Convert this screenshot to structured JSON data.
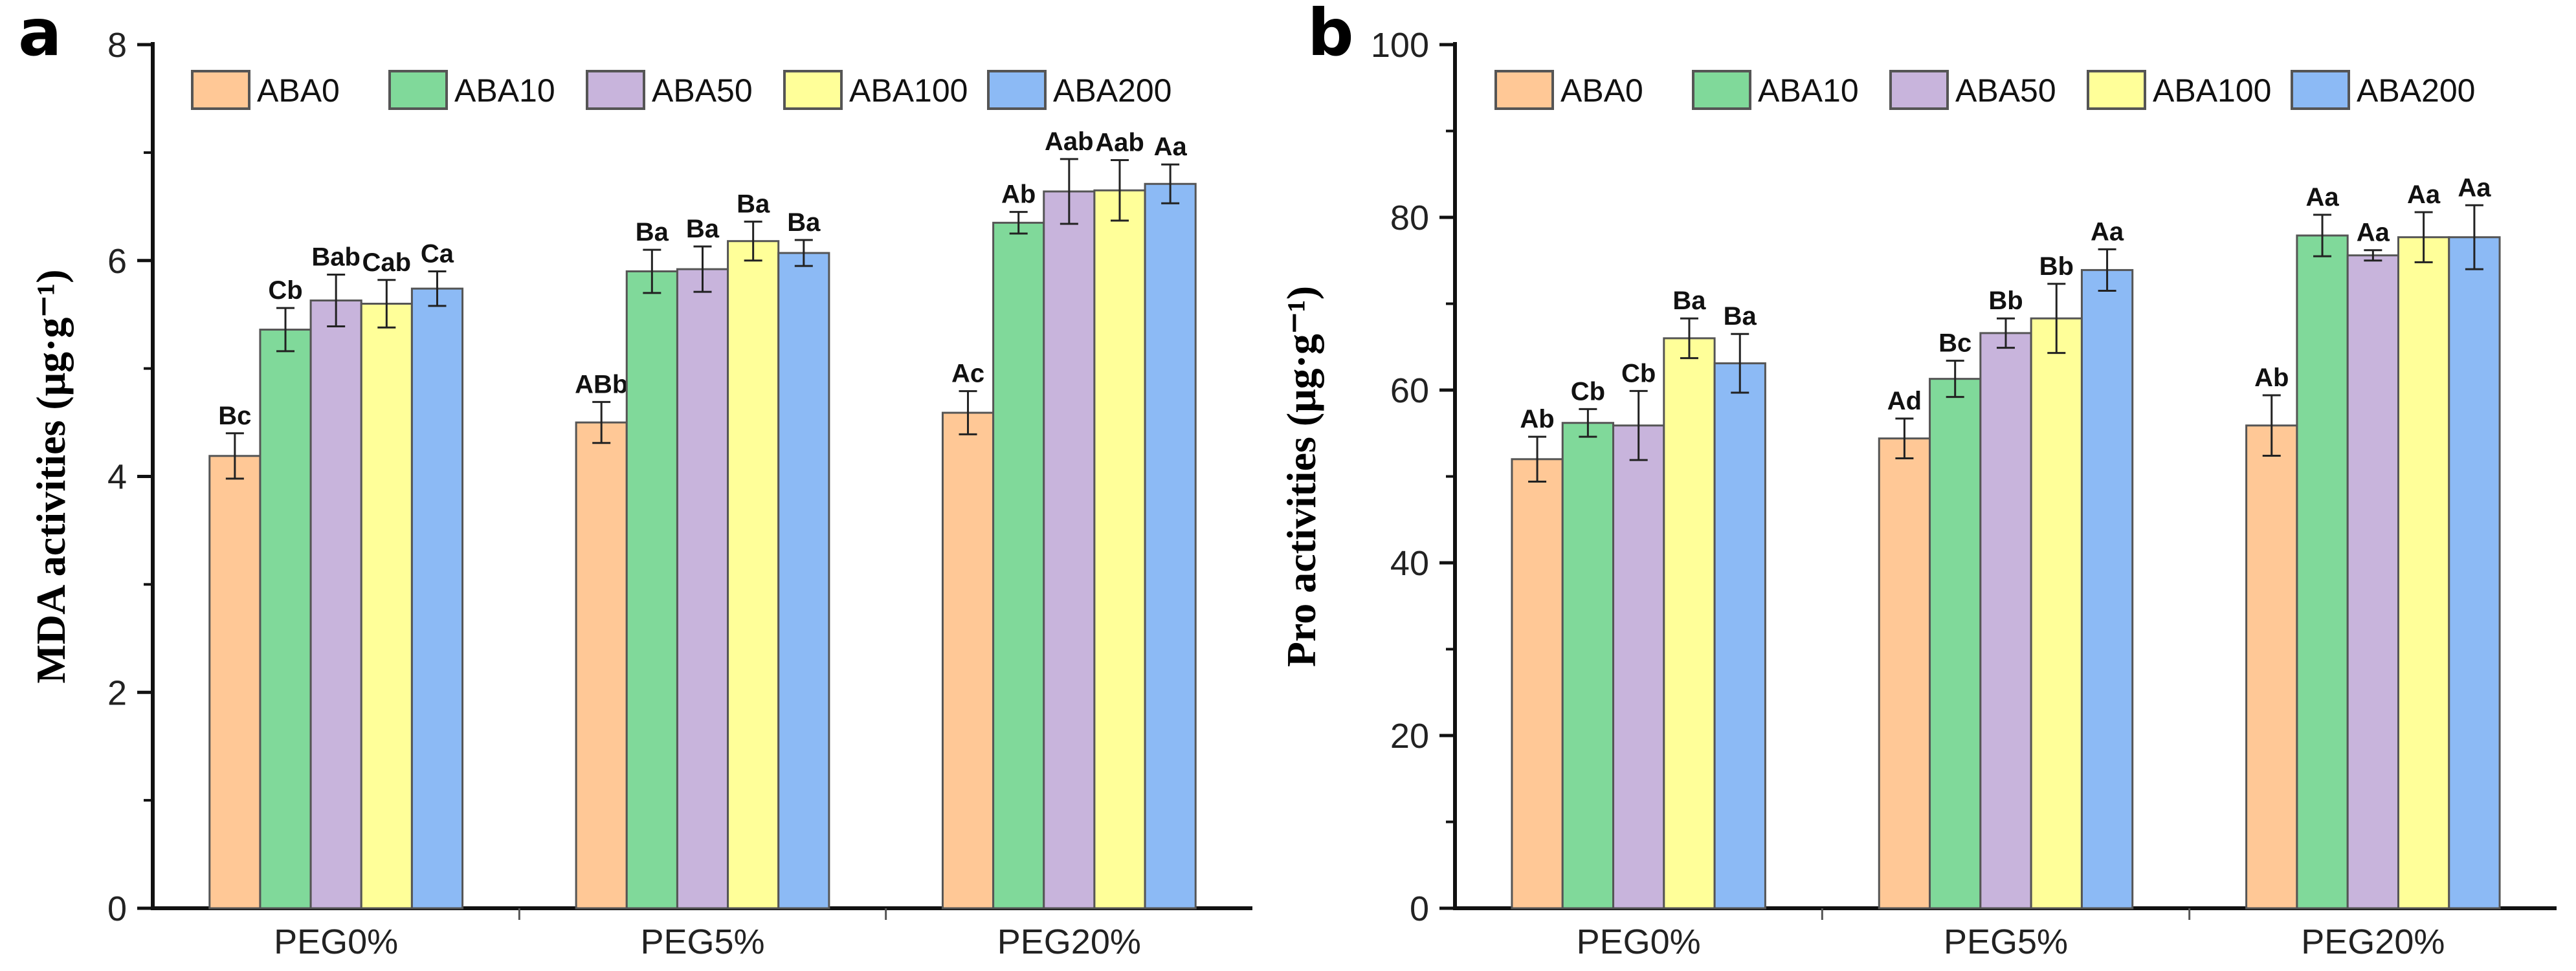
{
  "chart_data": [
    {
      "type": "bar",
      "panel": "a",
      "ylabel": "MDA  activities (μg·g⁻¹)",
      "ylim": [
        0,
        8
      ],
      "yticks": [
        0,
        2,
        4,
        6,
        8
      ],
      "categories": [
        "PEG0%",
        "PEG5%",
        "PEG20%"
      ],
      "legend_position": "top",
      "series": [
        {
          "name": "ABA0",
          "color": "#FFC896",
          "values": [
            4.19,
            4.5,
            4.59
          ],
          "errors": [
            0.21,
            0.19,
            0.2
          ],
          "labels": [
            "Bc",
            "ABb",
            "Ac"
          ]
        },
        {
          "name": "ABA10",
          "color": "#80D99A",
          "values": [
            5.36,
            5.9,
            6.35
          ],
          "errors": [
            0.2,
            0.2,
            0.1
          ],
          "labels": [
            "Cb",
            "Ba",
            "Ab"
          ]
        },
        {
          "name": "ABA50",
          "color": "#C8B4DC",
          "values": [
            5.63,
            5.92,
            6.64
          ],
          "errors": [
            0.24,
            0.21,
            0.3
          ],
          "labels": [
            "Bab",
            "Ba",
            "Aab"
          ]
        },
        {
          "name": "ABA100",
          "color": "#FFFF99",
          "values": [
            5.6,
            6.18,
            6.65
          ],
          "errors": [
            0.22,
            0.18,
            0.28
          ],
          "labels": [
            "Cab",
            "Ba",
            "Aab"
          ]
        },
        {
          "name": "ABA200",
          "color": "#8CBAF5",
          "values": [
            5.74,
            6.07,
            6.71
          ],
          "errors": [
            0.16,
            0.12,
            0.18
          ],
          "labels": [
            "Ca",
            "Ba",
            "Aa"
          ]
        }
      ]
    },
    {
      "type": "bar",
      "panel": "b",
      "ylabel": "Pro  activities (μg·g⁻¹)",
      "ylim": [
        0,
        100
      ],
      "yticks": [
        0,
        20,
        40,
        60,
        80,
        100
      ],
      "categories": [
        "PEG0%",
        "PEG5%",
        "PEG20%"
      ],
      "legend_position": "top",
      "series": [
        {
          "name": "ABA0",
          "color": "#FFC896",
          "values": [
            52.0,
            54.4,
            55.9
          ],
          "errors": [
            2.6,
            2.3,
            3.5
          ],
          "labels": [
            "Ab",
            "Ad",
            "Ab"
          ]
        },
        {
          "name": "ABA10",
          "color": "#80D99A",
          "values": [
            56.2,
            61.3,
            77.9
          ],
          "errors": [
            1.6,
            2.1,
            2.4
          ],
          "labels": [
            "Cb",
            "Bc",
            "Aa"
          ]
        },
        {
          "name": "ABA50",
          "color": "#C8B4DC",
          "values": [
            55.9,
            66.6,
            75.6
          ],
          "errors": [
            4.0,
            1.7,
            0.6
          ],
          "labels": [
            "Cb",
            "Bb",
            "Aa"
          ]
        },
        {
          "name": "ABA100",
          "color": "#FFFF99",
          "values": [
            66.0,
            68.3,
            77.7
          ],
          "errors": [
            2.3,
            4.0,
            2.9
          ],
          "labels": [
            "Ba",
            "Bb",
            "Aa"
          ]
        },
        {
          "name": "ABA200",
          "color": "#8CBAF5",
          "values": [
            63.1,
            73.9,
            77.7
          ],
          "errors": [
            3.4,
            2.4,
            3.7
          ],
          "labels": [
            "Ba",
            "Aa",
            "Aa"
          ]
        }
      ]
    }
  ]
}
